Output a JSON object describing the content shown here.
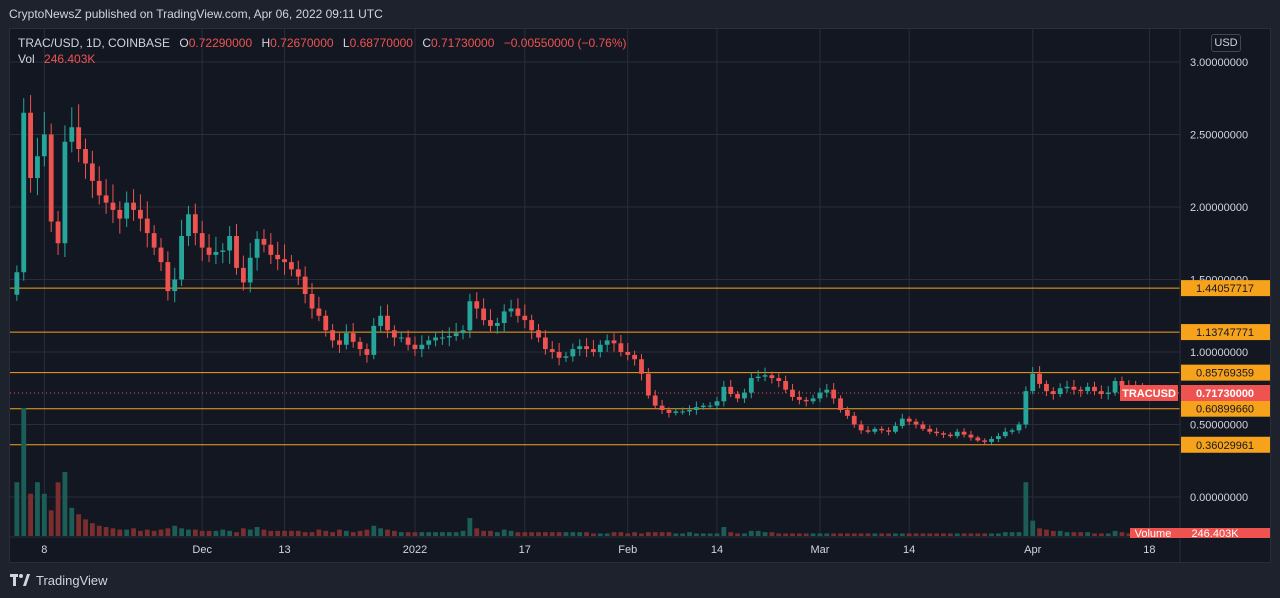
{
  "header": {
    "publisher_line": "CryptoNewsZ published on TradingView.com, Apr 06, 2022 09:11 UTC"
  },
  "legend": {
    "symbol": "TRAC/USD, 1D, COINBASE",
    "o_label": "O",
    "o_value": "0.72290000",
    "h_label": "H",
    "h_value": "0.72670000",
    "l_label": "L",
    "l_value": "0.68770000",
    "c_label": "C",
    "c_value": "0.71730000",
    "change": "−0.00550000 (−0.76%)",
    "vol_label": "Vol",
    "vol_value": "246.403K"
  },
  "currency_button": "USD",
  "footer": {
    "brand": "TradingView"
  },
  "colors": {
    "up": "#26a69a",
    "down": "#ef5350",
    "up_vol": "#1b5e57",
    "down_vol": "#7a2e2e",
    "level_line": "#f7a21b",
    "grid": "#2a2e39"
  },
  "chart_data": {
    "type": "candlestick",
    "symbol": "TRACUSD",
    "y_axis": {
      "ticks": [
        "3.00000000",
        "2.50000000",
        "2.00000000",
        "1.50000000",
        "1.00000000",
        "0.50000000",
        "0.00000000"
      ],
      "tick_values": [
        3.0,
        2.5,
        2.0,
        1.5,
        1.0,
        0.5,
        0.0
      ],
      "ylim": [
        -0.25,
        3.3
      ]
    },
    "x_axis": {
      "ticks": [
        "8",
        "Dec",
        "13",
        "2022",
        "17",
        "Feb",
        "14",
        "Mar",
        "14",
        "Apr",
        "18"
      ],
      "tick_dates": [
        "2021-11-08",
        "2021-12-01",
        "2021-12-13",
        "2022-01-01",
        "2022-01-17",
        "2022-02-01",
        "2022-02-14",
        "2022-03-01",
        "2022-03-14",
        "2022-04-01",
        "2022-04-18"
      ],
      "xlim": [
        "2021-11-03",
        "2022-04-21"
      ]
    },
    "horizontal_levels": [
      {
        "value": 1.44057717,
        "label": "1.44057717"
      },
      {
        "value": 1.13747771,
        "label": "1.13747771"
      },
      {
        "value": 0.85769359,
        "label": "0.85769359"
      },
      {
        "value": 0.6089966,
        "label": "0.60899660"
      },
      {
        "value": 0.36029961,
        "label": "0.36029961"
      }
    ],
    "last_price": {
      "value": 0.7173,
      "label": "0.71730000",
      "tag": "TRACUSD"
    },
    "volume_tag": {
      "label": "Volume",
      "value": "246.403K"
    },
    "closes": [
      1.55,
      2.65,
      2.2,
      2.35,
      2.5,
      1.9,
      1.75,
      2.45,
      2.55,
      2.4,
      2.3,
      2.18,
      2.08,
      2.03,
      1.98,
      1.92,
      2.03,
      1.98,
      1.92,
      1.82,
      1.72,
      1.62,
      1.42,
      1.5,
      1.8,
      1.95,
      1.82,
      1.72,
      1.67,
      1.69,
      1.7,
      1.8,
      1.58,
      1.48,
      1.65,
      1.78,
      1.74,
      1.67,
      1.64,
      1.62,
      1.57,
      1.52,
      1.4,
      1.3,
      1.25,
      1.15,
      1.08,
      1.05,
      1.13,
      1.07,
      1.02,
      0.98,
      1.18,
      1.25,
      1.15,
      1.1,
      1.1,
      1.05,
      1.02,
      1.05,
      1.08,
      1.1,
      1.1,
      1.11,
      1.13,
      1.15,
      1.35,
      1.3,
      1.22,
      1.18,
      1.2,
      1.28,
      1.3,
      1.25,
      1.22,
      1.15,
      1.1,
      1.02,
      1.0,
      0.96,
      0.97,
      1.02,
      1.04,
      1.02,
      1.0,
      1.05,
      1.08,
      1.06,
      1.0,
      0.98,
      0.95,
      0.85,
      0.7,
      0.63,
      0.6,
      0.58,
      0.59,
      0.59,
      0.6,
      0.62,
      0.63,
      0.63,
      0.66,
      0.76,
      0.71,
      0.68,
      0.72,
      0.82,
      0.83,
      0.84,
      0.82,
      0.8,
      0.74,
      0.69,
      0.67,
      0.66,
      0.68,
      0.72,
      0.74,
      0.68,
      0.6,
      0.56,
      0.5,
      0.46,
      0.45,
      0.47,
      0.46,
      0.45,
      0.49,
      0.54,
      0.52,
      0.5,
      0.47,
      0.45,
      0.44,
      0.43,
      0.42,
      0.45,
      0.43,
      0.41,
      0.39,
      0.38,
      0.4,
      0.42,
      0.45,
      0.46,
      0.5,
      0.73,
      0.85,
      0.78,
      0.73,
      0.71,
      0.75,
      0.76,
      0.74,
      0.73,
      0.76,
      0.73,
      0.71,
      0.72,
      0.8,
      0.77,
      0.76,
      0.74,
      0.72,
      0.7173
    ],
    "volumes": [
      0.42,
      1.0,
      0.33,
      0.42,
      0.33,
      0.2,
      0.42,
      0.5,
      0.22,
      0.17,
      0.13,
      0.1,
      0.08,
      0.07,
      0.06,
      0.05,
      0.05,
      0.06,
      0.04,
      0.05,
      0.04,
      0.05,
      0.06,
      0.08,
      0.06,
      0.05,
      0.05,
      0.04,
      0.04,
      0.04,
      0.05,
      0.04,
      0.03,
      0.06,
      0.05,
      0.07,
      0.05,
      0.04,
      0.04,
      0.04,
      0.04,
      0.04,
      0.03,
      0.03,
      0.05,
      0.04,
      0.03,
      0.05,
      0.04,
      0.03,
      0.04,
      0.05,
      0.08,
      0.06,
      0.05,
      0.04,
      0.03,
      0.03,
      0.03,
      0.03,
      0.03,
      0.03,
      0.03,
      0.03,
      0.03,
      0.04,
      0.14,
      0.06,
      0.04,
      0.04,
      0.03,
      0.05,
      0.04,
      0.03,
      0.03,
      0.03,
      0.03,
      0.03,
      0.03,
      0.03,
      0.03,
      0.03,
      0.03,
      0.03,
      0.02,
      0.02,
      0.02,
      0.03,
      0.03,
      0.02,
      0.03,
      0.02,
      0.03,
      0.03,
      0.03,
      0.03,
      0.02,
      0.02,
      0.03,
      0.02,
      0.02,
      0.02,
      0.02,
      0.07,
      0.03,
      0.02,
      0.02,
      0.04,
      0.04,
      0.03,
      0.03,
      0.02,
      0.02,
      0.02,
      0.02,
      0.02,
      0.02,
      0.02,
      0.02,
      0.02,
      0.02,
      0.02,
      0.02,
      0.02,
      0.02,
      0.02,
      0.02,
      0.02,
      0.02,
      0.02,
      0.02,
      0.02,
      0.02,
      0.02,
      0.02,
      0.02,
      0.02,
      0.02,
      0.02,
      0.02,
      0.02,
      0.02,
      0.02,
      0.02,
      0.03,
      0.03,
      0.03,
      0.42,
      0.12,
      0.06,
      0.05,
      0.04,
      0.04,
      0.03,
      0.03,
      0.03,
      0.03,
      0.02,
      0.02,
      0.02,
      0.04,
      0.03,
      0.02,
      0.02,
      0.02,
      0.02
    ]
  }
}
